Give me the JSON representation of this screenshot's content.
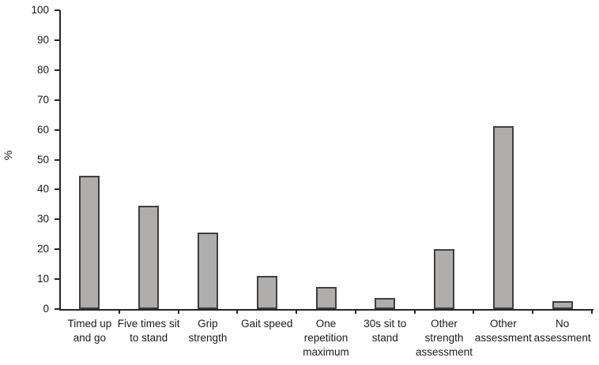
{
  "chart_data": {
    "type": "bar",
    "title": "",
    "xlabel": "",
    "ylabel": "%",
    "categories": [
      "Timed up\nand go",
      "Five times sit\nto stand",
      "Grip\nstrength",
      "Gait speed",
      "One\nrepetition\nmaximum",
      "30s sit to\nstand",
      "Other\nstrength\nassessment",
      "Other\nassessment",
      "No\nassessment"
    ],
    "values": [
      44.5,
      34.5,
      25.5,
      11.1,
      7.4,
      3.7,
      20.1,
      61.2,
      2.6
    ],
    "ylim": [
      0,
      100
    ],
    "yticks": [
      0,
      10,
      20,
      30,
      40,
      50,
      60,
      70,
      80,
      90,
      100
    ],
    "grid": "off",
    "legend": "none",
    "bar_fill": "#b0adad",
    "bar_border": "#3f3f3f",
    "axis_color": "#262626",
    "text_color": "#1a1a1a"
  }
}
